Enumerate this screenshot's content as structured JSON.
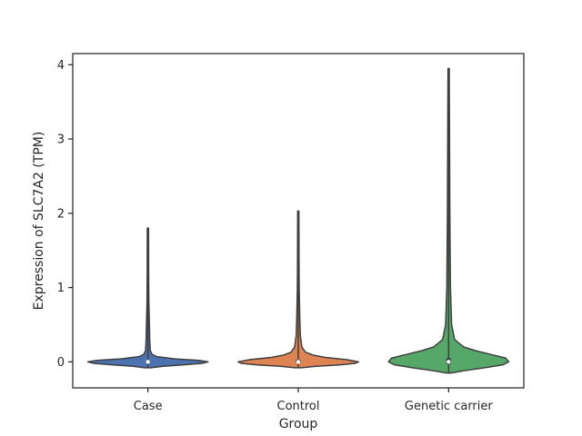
{
  "chart_data": {
    "type": "violin",
    "title": "",
    "xlabel": "Group",
    "ylabel": "Expression of SLC7A2 (TPM)",
    "categories": [
      "Case",
      "Control",
      "Genetic carrier"
    ],
    "ylim": [
      -0.35,
      4.15
    ],
    "yticks": [
      0,
      1,
      2,
      3,
      4
    ],
    "grid": false,
    "colors": [
      "#4c72b0",
      "#dd8452",
      "#55a868"
    ],
    "series": [
      {
        "category": "Case",
        "color": "#4c72b0",
        "min": -0.08,
        "max": 1.8,
        "median": 0.0,
        "q1": -0.01,
        "q3": 0.02,
        "density_profile": [
          [
            -0.08,
            0.05
          ],
          [
            -0.06,
            0.25
          ],
          [
            -0.04,
            0.6
          ],
          [
            -0.02,
            0.9
          ],
          [
            0.0,
            1.0
          ],
          [
            0.02,
            0.85
          ],
          [
            0.04,
            0.45
          ],
          [
            0.07,
            0.15
          ],
          [
            0.1,
            0.07
          ],
          [
            0.15,
            0.04
          ],
          [
            0.3,
            0.03
          ],
          [
            0.5,
            0.025
          ],
          [
            0.8,
            0.015
          ],
          [
            1.2,
            0.012
          ],
          [
            1.8,
            0.01
          ]
        ]
      },
      {
        "category": "Control",
        "color": "#dd8452",
        "min": -0.08,
        "max": 2.03,
        "median": 0.0,
        "q1": -0.01,
        "q3": 0.03,
        "density_profile": [
          [
            -0.08,
            0.05
          ],
          [
            -0.06,
            0.3
          ],
          [
            -0.04,
            0.7
          ],
          [
            -0.02,
            0.95
          ],
          [
            0.0,
            1.0
          ],
          [
            0.03,
            0.8
          ],
          [
            0.06,
            0.45
          ],
          [
            0.09,
            0.25
          ],
          [
            0.13,
            0.12
          ],
          [
            0.2,
            0.06
          ],
          [
            0.35,
            0.035
          ],
          [
            0.6,
            0.025
          ],
          [
            1.0,
            0.015
          ],
          [
            1.5,
            0.012
          ],
          [
            2.03,
            0.01
          ]
        ]
      },
      {
        "category": "Genetic carrier",
        "color": "#55a868",
        "min": -0.15,
        "max": 3.95,
        "median": 0.0,
        "q1": -0.03,
        "q3": 0.05,
        "density_profile": [
          [
            -0.15,
            0.04
          ],
          [
            -0.12,
            0.25
          ],
          [
            -0.08,
            0.6
          ],
          [
            -0.04,
            0.9
          ],
          [
            0.0,
            1.0
          ],
          [
            0.05,
            0.95
          ],
          [
            0.1,
            0.7
          ],
          [
            0.15,
            0.45
          ],
          [
            0.2,
            0.25
          ],
          [
            0.3,
            0.1
          ],
          [
            0.5,
            0.05
          ],
          [
            1.0,
            0.03
          ],
          [
            2.0,
            0.02
          ],
          [
            3.0,
            0.015
          ],
          [
            3.95,
            0.01
          ]
        ]
      }
    ]
  }
}
